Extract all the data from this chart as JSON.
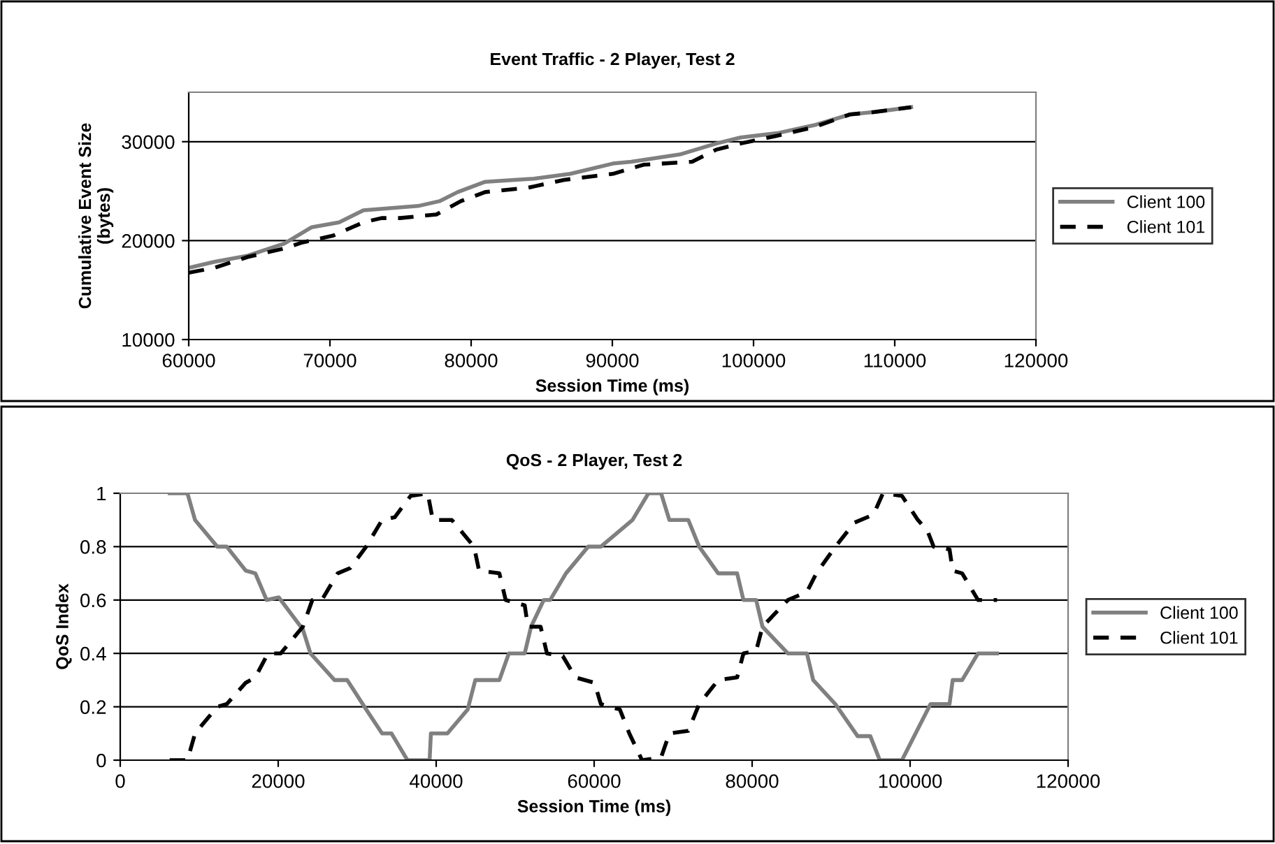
{
  "chart_data": [
    {
      "type": "line",
      "title": "Event Traffic - 2 Player, Test 2",
      "xlabel": "Session Time (ms)",
      "ylabel": "Cumulative Event Size\n(bytes)",
      "xlim": [
        60000,
        120000
      ],
      "xticks": [
        60000,
        70000,
        80000,
        90000,
        100000,
        110000,
        120000
      ],
      "ylim": [
        10000,
        35000
      ],
      "yticks": [
        10000,
        20000,
        30000
      ],
      "grid": "y",
      "legend": "right",
      "marker": "none",
      "series": [
        {
          "name": "Client 100",
          "color": "#808080",
          "line_style": "solid",
          "x": [
            60000,
            61810,
            64180,
            66770,
            68710,
            70650,
            72370,
            76250,
            77760,
            79050,
            81000,
            84440,
            87030,
            90040,
            91340,
            94780,
            97370,
            99090,
            101680,
            104270,
            106850,
            108580,
            111160
          ],
          "values": [
            17250,
            17860,
            18480,
            19700,
            21360,
            21850,
            23070,
            23500,
            23990,
            24910,
            25950,
            26260,
            26750,
            27790,
            27980,
            28710,
            29820,
            30430,
            30860,
            31660,
            32760,
            33000,
            33490
          ]
        },
        {
          "name": "Client 101",
          "color": "#000000",
          "line_style": "dashed",
          "x": [
            60000,
            61810,
            64180,
            66770,
            68060,
            70220,
            72370,
            73660,
            74960,
            77540,
            79270,
            81000,
            84010,
            86590,
            90040,
            92200,
            95650,
            97370,
            99090,
            101680,
            104270,
            106850,
            108580,
            111160
          ],
          "values": [
            16760,
            17250,
            18350,
            19210,
            19820,
            20500,
            21850,
            22280,
            22280,
            22640,
            23990,
            24910,
            25340,
            26140,
            26750,
            27670,
            27980,
            29200,
            29820,
            30610,
            31470,
            32760,
            33000,
            33490
          ]
        }
      ]
    },
    {
      "type": "line",
      "title": "QoS - 2 Player, Test 2",
      "xlabel": "Session Time (ms)",
      "ylabel": "QoS Index",
      "xlim": [
        0,
        120000
      ],
      "xticks": [
        0,
        20000,
        40000,
        60000,
        80000,
        100000,
        120000
      ],
      "ylim": [
        0,
        1
      ],
      "yticks": [
        0,
        0.2,
        0.4,
        0.6,
        0.8,
        1
      ],
      "grid": "y",
      "legend": "right",
      "marker": "none",
      "series": [
        {
          "name": "Client 100",
          "color": "#808080",
          "line_style": "solid",
          "x": [
            6260,
            8510,
            9470,
            12280,
            13480,
            15890,
            17100,
            18540,
            20070,
            23120,
            24080,
            27130,
            28740,
            31140,
            33150,
            34350,
            36360,
            39170,
            39330,
            41420,
            43990,
            44950,
            48000,
            49200,
            51210,
            52010,
            53620,
            54420,
            56430,
            59240,
            60850,
            64860,
            66870,
            68470,
            69520,
            71920,
            73290,
            75700,
            78100,
            78900,
            80510,
            81310,
            84520,
            86930,
            87730,
            90540,
            93350,
            94960,
            96160,
            98970,
            102580,
            104990,
            105390,
            106590,
            108600,
            111010
          ],
          "values": [
            1,
            1,
            0.9,
            0.8,
            0.8,
            0.71,
            0.7,
            0.6,
            0.61,
            0.49,
            0.4,
            0.3,
            0.3,
            0.19,
            0.1,
            0.1,
            0,
            0,
            0.1,
            0.1,
            0.19,
            0.3,
            0.3,
            0.4,
            0.4,
            0.5,
            0.6,
            0.6,
            0.7,
            0.8,
            0.8,
            0.9,
            1,
            1,
            0.9,
            0.9,
            0.8,
            0.7,
            0.7,
            0.6,
            0.6,
            0.5,
            0.4,
            0.4,
            0.3,
            0.21,
            0.09,
            0.09,
            0,
            0,
            0.21,
            0.21,
            0.3,
            0.3,
            0.4,
            0.4
          ]
        },
        {
          "name": "Client 101",
          "color": "#000000",
          "line_style": "dashed",
          "x": [
            6260,
            8510,
            9470,
            12280,
            13480,
            15890,
            17100,
            18700,
            20310,
            23120,
            24320,
            25520,
            27530,
            29130,
            31140,
            33150,
            34750,
            36760,
            38930,
            39570,
            41980,
            44790,
            45430,
            48000,
            48800,
            51210,
            51610,
            53220,
            54020,
            56030,
            57630,
            60040,
            60850,
            63250,
            64450,
            66060,
            68470,
            69520,
            71920,
            73290,
            75700,
            78100,
            78900,
            80510,
            81310,
            84520,
            86930,
            88130,
            90540,
            92950,
            95360,
            96560,
            98970,
            100980,
            102180,
            102980,
            104990,
            105390,
            106590,
            108600,
            111010
          ],
          "values": [
            0,
            0,
            0.1,
            0.2,
            0.21,
            0.29,
            0.31,
            0.4,
            0.4,
            0.5,
            0.6,
            0.6,
            0.7,
            0.72,
            0.8,
            0.9,
            0.91,
            0.99,
            1,
            0.9,
            0.9,
            0.8,
            0.71,
            0.7,
            0.6,
            0.58,
            0.5,
            0.5,
            0.4,
            0.39,
            0.31,
            0.29,
            0.21,
            0.19,
            0.1,
            0,
            0.01,
            0.1,
            0.11,
            0.21,
            0.3,
            0.31,
            0.4,
            0.41,
            0.5,
            0.6,
            0.63,
            0.7,
            0.8,
            0.89,
            0.92,
            1,
            0.99,
            0.9,
            0.86,
            0.8,
            0.79,
            0.71,
            0.7,
            0.6,
            0.6
          ]
        }
      ]
    }
  ]
}
